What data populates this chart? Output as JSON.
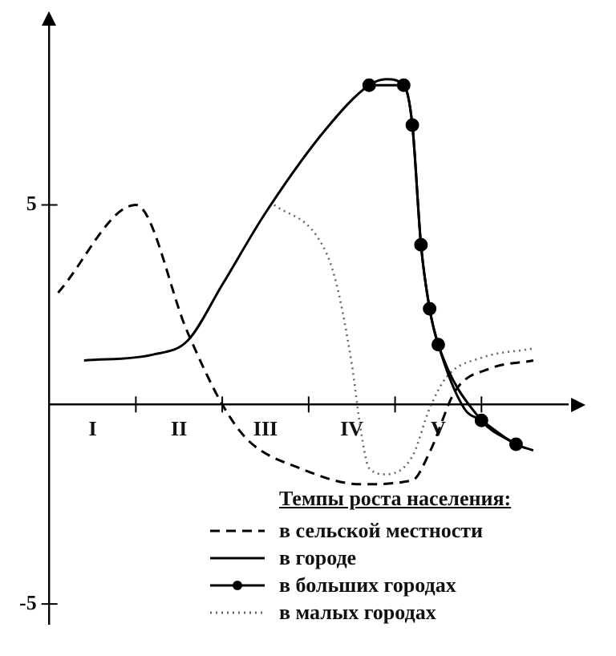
{
  "chart_data": {
    "type": "line",
    "legend_title": "Темпы роста населения:",
    "legend": "bottom",
    "categories": [
      null,
      null,
      null,
      null,
      null,
      "I",
      null,
      null,
      null,
      null,
      null,
      null,
      null,
      null,
      null,
      "II",
      null,
      null,
      null,
      null,
      null,
      null,
      null,
      null,
      null,
      "III",
      null,
      null,
      null,
      null,
      null,
      null,
      null,
      null,
      null,
      "IV",
      null,
      null,
      null,
      null,
      null,
      null,
      null,
      null,
      null,
      "V",
      null,
      null,
      null,
      null,
      null,
      null,
      null,
      null,
      null,
      null,
      null,
      null,
      null,
      null,
      null
    ],
    "ylim": [
      -5.5,
      9.5
    ],
    "yticks": [
      -5,
      5
    ],
    "series": [
      {
        "name": "в сельской местности",
        "color": "#000000",
        "line_style": "dashed",
        "marker": "none",
        "values": [
          null,
          2.8,
          null,
          null,
          null,
          null,
          null,
          null,
          null,
          null,
          5,
          null,
          null,
          null,
          null,
          null,
          1.8,
          null,
          null,
          null,
          0,
          null,
          null,
          -0.9,
          null,
          null,
          null,
          null,
          null,
          -1.6,
          null,
          null,
          null,
          null,
          null,
          null,
          -2,
          null,
          null,
          null,
          null,
          null,
          -1.9,
          null,
          -1.2,
          null,
          null,
          0.35,
          null,
          null,
          null,
          0.9,
          null,
          null,
          null,
          null,
          1.1,
          null,
          null,
          null,
          null
        ]
      },
      {
        "name": "в городе",
        "color": "#000000",
        "line_style": "solid",
        "marker": "none",
        "values": [
          null,
          null,
          null,
          null,
          1.1,
          null,
          null,
          null,
          null,
          null,
          null,
          null,
          1.25,
          null,
          null,
          null,
          1.6,
          null,
          null,
          null,
          3,
          null,
          null,
          null,
          null,
          4.8,
          null,
          null,
          null,
          null,
          null,
          null,
          6.9,
          null,
          null,
          null,
          null,
          8,
          null,
          8.15,
          null,
          8,
          7,
          4,
          2.4,
          1.5,
          null,
          null,
          -0.1,
          null,
          -0.4,
          null,
          null,
          null,
          -1,
          null,
          -1.15,
          null,
          null,
          null,
          null
        ]
      },
      {
        "name": "в больших городах",
        "color": "#000000",
        "line_style": "solid",
        "marker": "circle",
        "values": [
          null,
          null,
          null,
          null,
          null,
          null,
          null,
          null,
          null,
          null,
          null,
          null,
          null,
          null,
          null,
          null,
          null,
          null,
          null,
          null,
          null,
          null,
          null,
          null,
          null,
          null,
          null,
          null,
          null,
          null,
          null,
          null,
          null,
          null,
          null,
          null,
          null,
          8,
          null,
          null,
          null,
          8,
          7,
          4,
          2.4,
          1.5,
          null,
          null,
          null,
          null,
          -0.4,
          null,
          null,
          null,
          -1,
          null,
          null,
          null,
          null,
          null,
          null
        ]
      },
      {
        "name": "в малых городах",
        "color": "#666666",
        "line_style": "dotted",
        "marker": "none",
        "values": [
          null,
          null,
          null,
          null,
          null,
          null,
          null,
          null,
          null,
          null,
          null,
          null,
          null,
          null,
          null,
          null,
          null,
          null,
          null,
          null,
          null,
          null,
          null,
          null,
          null,
          null,
          5,
          null,
          null,
          null,
          null,
          4.2,
          null,
          3.2,
          null,
          1,
          -0.6,
          -1.6,
          null,
          -1.75,
          null,
          null,
          -1.3,
          null,
          -0.1,
          null,
          0.7,
          null,
          null,
          null,
          1.17,
          null,
          null,
          null,
          null,
          null,
          1.4,
          null,
          null,
          null,
          null
        ]
      }
    ]
  }
}
